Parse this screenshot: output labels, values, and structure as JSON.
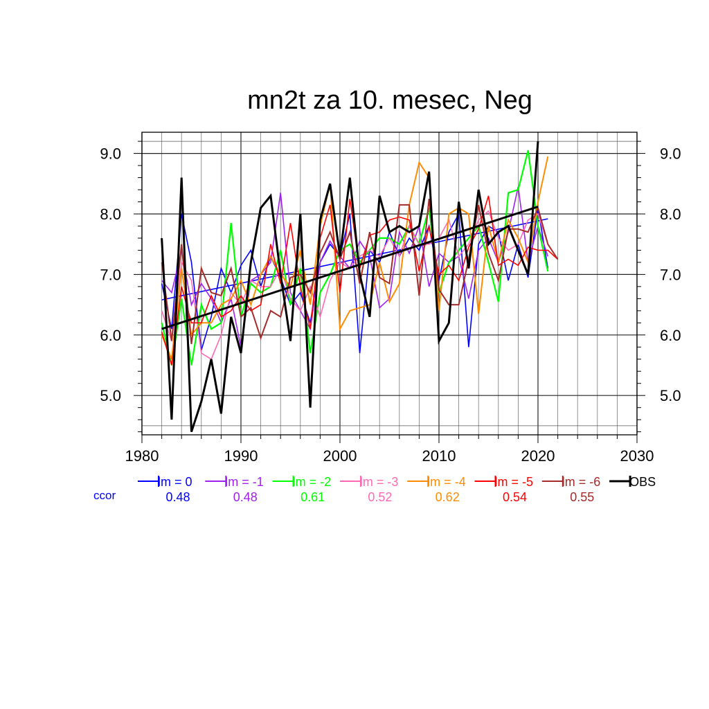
{
  "chart_data": {
    "type": "line",
    "title": "mn2t za 10. mesec, Neg",
    "xlabel": "",
    "ylabel": "",
    "xlim": [
      1980,
      2030
    ],
    "ylim": [
      4.35,
      9.35
    ],
    "xticks": [
      "1980",
      "1990",
      "2000",
      "2010",
      "2020",
      "2030"
    ],
    "yticks": [
      "5.0",
      "6.0",
      "7.0",
      "8.0",
      "9.0"
    ],
    "grid": true,
    "ccor_label": "ccor",
    "x": [
      1982,
      1983,
      1984,
      1985,
      1986,
      1987,
      1988,
      1989,
      1990,
      1991,
      1992,
      1993,
      1994,
      1995,
      1996,
      1997,
      1998,
      1999,
      2000,
      2001,
      2002,
      2003,
      2004,
      2005,
      2006,
      2007,
      2008,
      2009,
      2010,
      2011,
      2012,
      2013,
      2014,
      2015,
      2016,
      2017,
      2018,
      2019,
      2020,
      2021,
      2022
    ],
    "series": [
      {
        "name": "lm = 0",
        "color": "#0000ff",
        "ccor": "0.48",
        "width": 1.6,
        "values": [
          6.85,
          6.1,
          8.0,
          7.2,
          5.75,
          6.3,
          7.1,
          6.7,
          7.15,
          7.4,
          6.8,
          7.3,
          6.95,
          6.5,
          6.7,
          6.2,
          7.2,
          7.5,
          7.3,
          8.0,
          5.7,
          7.4,
          7.2,
          7.7,
          7.3,
          7.6,
          7.4,
          7.8,
          6.9,
          7.7,
          8.0,
          5.8,
          7.5,
          7.8,
          7.7,
          6.9,
          7.5,
          6.95,
          8.1,
          7.1,
          null
        ],
        "trend": [
          6.58,
          7.92
        ]
      },
      {
        "name": "lm = -1",
        "color": "#a020f0",
        "ccor": "0.48",
        "width": 1.6,
        "values": [
          6.9,
          6.7,
          7.4,
          6.5,
          6.85,
          6.6,
          6.2,
          6.6,
          5.8,
          6.9,
          7.0,
          7.2,
          8.35,
          6.7,
          6.4,
          6.1,
          7.2,
          7.55,
          7.3,
          7.1,
          7.55,
          7.3,
          6.45,
          6.6,
          7.7,
          7.35,
          7.8,
          6.8,
          7.35,
          7.2,
          7.3,
          6.6,
          7.4,
          7.6,
          7.2,
          7.7,
          8.45,
          7.2,
          7.8,
          7.3,
          null
        ]
      },
      {
        "name": "lm = -2",
        "color": "#00ff00",
        "ccor": "0.61",
        "width": 2.2,
        "values": [
          6.2,
          5.5,
          6.6,
          5.5,
          6.5,
          6.1,
          6.2,
          7.85,
          6.3,
          6.85,
          6.7,
          6.8,
          7.4,
          6.5,
          7.1,
          5.7,
          6.7,
          7.0,
          7.4,
          7.5,
          7.2,
          7.4,
          7.6,
          7.6,
          7.5,
          7.8,
          7.5,
          8.1,
          6.7,
          7.2,
          7.4,
          7.6,
          7.8,
          7.2,
          6.55,
          8.35,
          8.4,
          9.05,
          7.8,
          7.05,
          null
        ]
      },
      {
        "name": "lm = -3",
        "color": "#ff69b4",
        "ccor": "0.52",
        "width": 1.6,
        "values": [
          6.4,
          5.9,
          7.2,
          6.9,
          5.7,
          5.6,
          6.0,
          6.7,
          6.5,
          6.9,
          6.8,
          6.8,
          7.1,
          6.6,
          6.4,
          6.8,
          6.3,
          6.9,
          7.2,
          7.1,
          7.3,
          7.4,
          7.3,
          7.6,
          7.3,
          7.8,
          7.5,
          7.5,
          7.6,
          7.9,
          7.3,
          7.5,
          7.9,
          8.05,
          7.6,
          7.4,
          7.5,
          7.9,
          8.0,
          7.5,
          null
        ]
      },
      {
        "name": "lm = -4",
        "color": "#ff8c00",
        "ccor": "0.62",
        "width": 2.0,
        "values": [
          6.0,
          5.6,
          7.1,
          6.0,
          6.2,
          6.2,
          6.5,
          6.6,
          6.9,
          6.5,
          7.0,
          7.3,
          7.0,
          6.8,
          7.4,
          6.5,
          7.8,
          8.5,
          6.1,
          6.4,
          6.45,
          6.5,
          7.2,
          6.55,
          6.85,
          8.15,
          8.85,
          8.6,
          6.4,
          8.0,
          8.1,
          8.0,
          6.35,
          7.8,
          7.2,
          7.9,
          7.6,
          7.2,
          8.2,
          8.95,
          null
        ]
      },
      {
        "name": "lm = -5",
        "color": "#ff0000",
        "ccor": "0.54",
        "width": 1.6,
        "values": [
          6.05,
          5.5,
          6.8,
          6.2,
          6.2,
          6.65,
          6.3,
          6.4,
          6.65,
          6.4,
          6.5,
          7.5,
          6.85,
          7.85,
          6.8,
          6.1,
          7.6,
          8.15,
          6.7,
          8.25,
          7.1,
          7.65,
          7.7,
          7.9,
          7.95,
          7.9,
          7.05,
          7.8,
          7.0,
          7.15,
          6.9,
          7.45,
          7.75,
          8.3,
          7.15,
          7.25,
          7.15,
          7.45,
          7.4,
          7.4,
          7.25
        ]
      },
      {
        "name": "lm = -6",
        "color": "#a52a2a",
        "ccor": "0.55",
        "width": 2.0,
        "values": [
          7.2,
          5.9,
          7.5,
          5.85,
          7.1,
          6.7,
          6.65,
          7.1,
          6.3,
          6.45,
          5.95,
          6.4,
          6.3,
          6.95,
          7.0,
          6.7,
          7.35,
          7.7,
          7.25,
          7.7,
          6.85,
          7.7,
          6.95,
          6.85,
          8.15,
          8.15,
          6.65,
          8.25,
          6.75,
          6.5,
          6.5,
          7.25,
          8.15,
          7.35,
          6.9,
          7.75,
          7.75,
          7.7,
          8.1,
          7.5,
          7.25
        ]
      },
      {
        "name": "OBS",
        "color": "#000000",
        "ccor": "",
        "width": 3.0,
        "values": [
          7.6,
          4.6,
          8.6,
          4.4,
          4.9,
          5.6,
          4.7,
          6.3,
          5.7,
          7.2,
          8.1,
          8.3,
          7.0,
          5.9,
          8.0,
          4.8,
          7.9,
          8.5,
          7.3,
          8.6,
          7.0,
          6.3,
          8.3,
          7.7,
          7.8,
          7.7,
          7.8,
          8.7,
          5.9,
          6.2,
          8.2,
          7.1,
          8.4,
          7.5,
          7.7,
          7.8,
          7.4,
          7.0,
          9.2,
          null,
          null
        ],
        "trend": [
          6.1,
          8.12
        ]
      }
    ]
  }
}
